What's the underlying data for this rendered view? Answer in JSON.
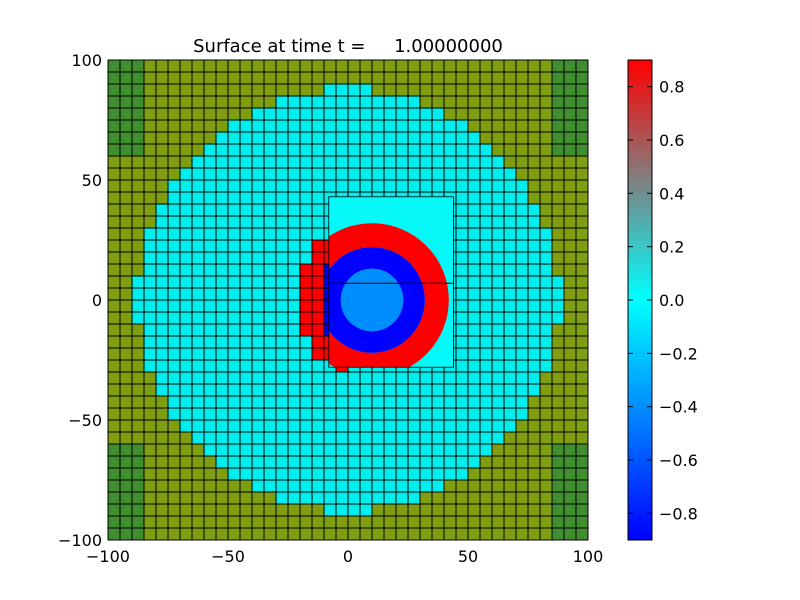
{
  "chart_data": {
    "type": "heatmap",
    "title": "Surface at time t =     1.00000000",
    "xlabel": "",
    "ylabel": "",
    "xlim": [
      -100,
      100
    ],
    "ylim": [
      -100,
      100
    ],
    "x_ticks": [
      -100,
      -50,
      0,
      50,
      100
    ],
    "x_tick_labels": [
      "−100",
      "−50",
      "0",
      "50",
      "100"
    ],
    "y_ticks": [
      -100,
      -50,
      0,
      50,
      100
    ],
    "y_tick_labels": [
      "−100",
      "−50",
      "0",
      "50",
      "100"
    ],
    "colorbar": {
      "range": [
        -0.9,
        0.9
      ],
      "ticks": [
        0.8,
        0.6,
        0.4,
        0.2,
        0.0,
        -0.2,
        -0.4,
        -0.6,
        -0.8
      ],
      "tick_labels": [
        "0.8",
        "0.6",
        "0.4",
        "0.2",
        "0.0",
        "−0.2",
        "−0.4",
        "−0.6",
        "−0.8"
      ],
      "colors": [
        "#0000ff",
        "#0080ff",
        "#00ffff",
        "#808080",
        "#ff0000"
      ]
    },
    "grid": {
      "coarse_cell_size": 5,
      "water_radius": 88,
      "land_color": "#7f9f10",
      "land_dark_color": "#3f8f30",
      "water_color": "#00eeee",
      "cell_edge_color": "#000000"
    },
    "ring": {
      "center": [
        10,
        0
      ],
      "crest_inner_radius": 22,
      "crest_outer_radius": 32,
      "crest_value": 0.9,
      "trough_inner_radius": 13,
      "trough_outer_radius": 22,
      "trough_value": -0.9,
      "core_value": -0.4
    },
    "fine_patch": {
      "x_range": [
        -8,
        44
      ],
      "y_range": [
        -28,
        43
      ],
      "background_value": 0.02,
      "gauge_line_y": 7
    }
  }
}
